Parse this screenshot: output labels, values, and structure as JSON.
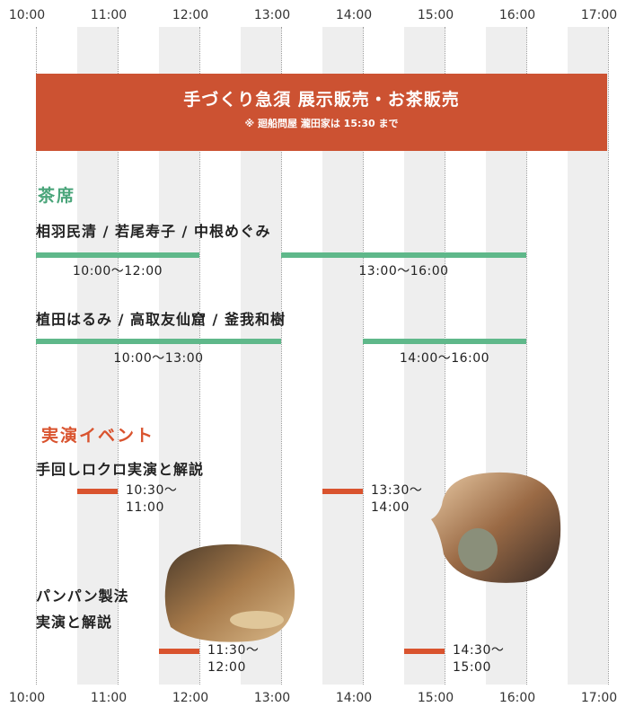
{
  "hours": [
    "10:00",
    "11:00",
    "12:00",
    "13:00",
    "14:00",
    "15:00",
    "16:00",
    "17:00"
  ],
  "banner": {
    "title": "手づくり急須 展示販売・お茶販売",
    "note": "※ 廻船問屋 瀧田家は 15:30 まで"
  },
  "tea": {
    "title": "茶席",
    "rows": [
      {
        "name": "相羽民清 / 若尾寿子 / 中根めぐみ",
        "sessions": [
          "10:00〜12:00",
          "13:00〜16:00"
        ]
      },
      {
        "name": "植田はるみ / 高取友仙窟 / 釜我和樹",
        "sessions": [
          "10:00〜13:00",
          "14:00〜16:00"
        ]
      }
    ]
  },
  "demo": {
    "title": "実演イベント",
    "events": [
      {
        "name_lines": [
          "手回しロクロ実演と解説"
        ],
        "sessions": [
          "10:30〜11:00",
          "13:30〜14:00"
        ]
      },
      {
        "name_lines": [
          "パンパン製法",
          "実演と解説"
        ],
        "sessions": [
          "11:30〜12:00",
          "14:30〜15:00"
        ]
      }
    ]
  }
}
